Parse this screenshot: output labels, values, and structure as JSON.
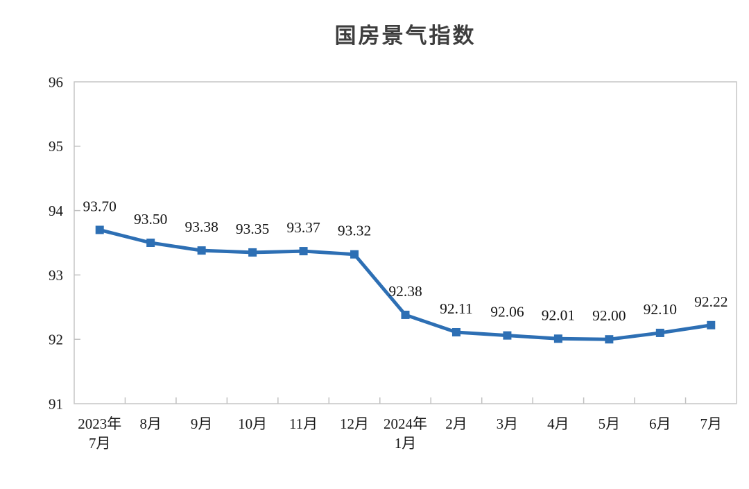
{
  "chart_data": {
    "type": "line",
    "title": "国房景气指数",
    "categories": [
      [
        "2023年",
        "7月"
      ],
      [
        "8月"
      ],
      [
        "9月"
      ],
      [
        "10月"
      ],
      [
        "11月"
      ],
      [
        "12月"
      ],
      [
        "2024年",
        "1月"
      ],
      [
        "2月"
      ],
      [
        "3月"
      ],
      [
        "4月"
      ],
      [
        "5月"
      ],
      [
        "6月"
      ],
      [
        "7月"
      ]
    ],
    "values": [
      93.7,
      93.5,
      93.38,
      93.35,
      93.37,
      93.32,
      92.38,
      92.11,
      92.06,
      92.01,
      92.0,
      92.1,
      92.22
    ],
    "data_labels": [
      "93.70",
      "93.50",
      "93.38",
      "93.35",
      "93.37",
      "93.32",
      "92.38",
      "92.11",
      "92.06",
      "92.01",
      "92.00",
      "92.10",
      "92.22"
    ],
    "ylim": [
      91,
      96
    ],
    "ytick_labels": [
      "96",
      "95",
      "94",
      "93",
      "92",
      "91"
    ],
    "yticks": [
      96,
      95,
      94,
      93,
      92,
      91
    ],
    "xlabel": "",
    "ylabel": "",
    "grid": false,
    "legend_position": "none",
    "marker": "square",
    "colors": {
      "series": "#2d6fb4",
      "axis_border": "#c6c6c6",
      "tick": "#c0c0c0",
      "axis_text": "#1a1a1a",
      "data_label_text": "#141414",
      "title_text": "#3d3d3d",
      "background": "#ffffff"
    }
  }
}
